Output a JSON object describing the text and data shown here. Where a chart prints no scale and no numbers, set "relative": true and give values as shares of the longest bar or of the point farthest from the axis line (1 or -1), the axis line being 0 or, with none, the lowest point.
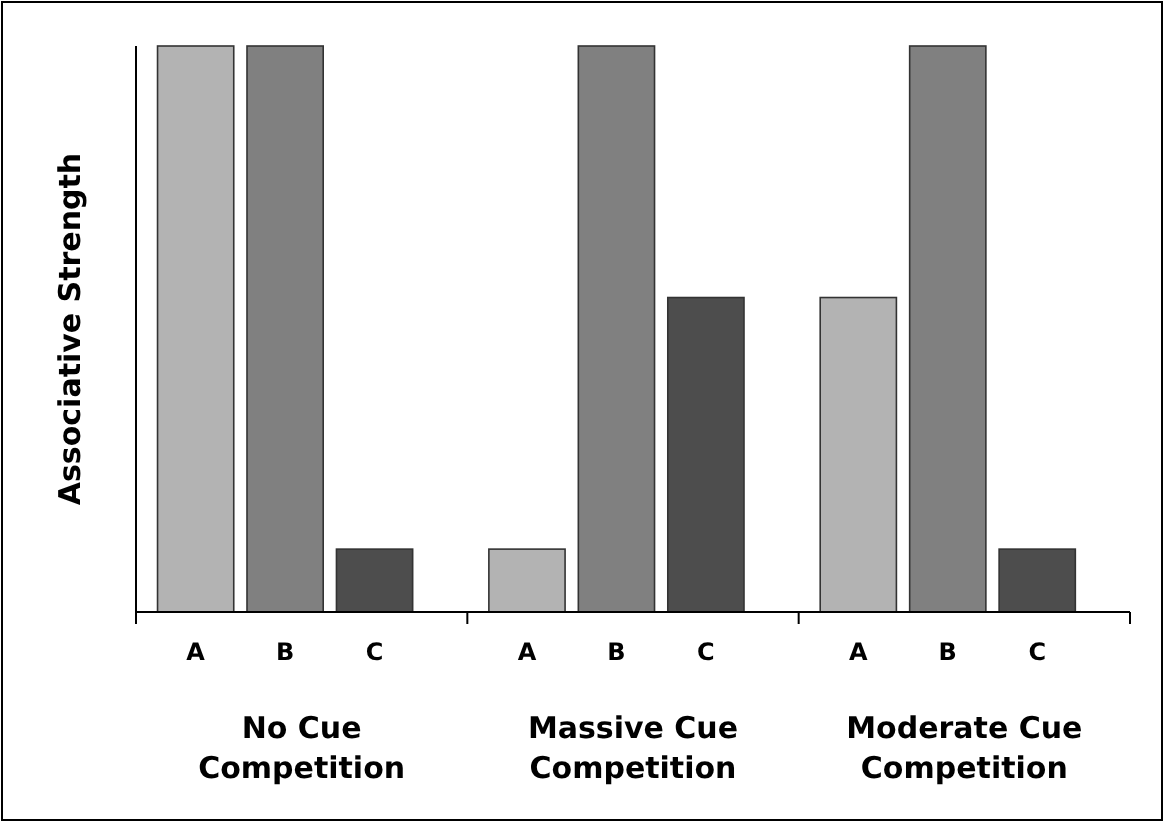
{
  "chart_data": {
    "type": "bar",
    "ylabel": "Associative Strength",
    "relative": true,
    "categories": [
      "A",
      "B",
      "C",
      "A",
      "B",
      "C",
      "A",
      "B",
      "C"
    ],
    "values": [
      1,
      1,
      0.1111,
      0.1111,
      1,
      0.5556,
      0.5556,
      1,
      0.1111
    ],
    "colors": [
      "#b3b3b3",
      "#808080",
      "#4d4d4d",
      "#b3b3b3",
      "#808080",
      "#4d4d4d",
      "#b3b3b3",
      "#808080",
      "#4d4d4d"
    ],
    "annotations": [
      "No Cue\nCompetition",
      "Massive Cue\nCompetition",
      "Moderate Cue\nCompetition"
    ]
  }
}
